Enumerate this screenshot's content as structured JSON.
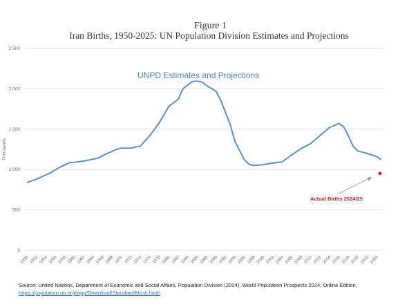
{
  "chart_data": {
    "type": "line",
    "title": "Figure 1",
    "subtitle": "Iran Births, 1950-2025: UN Population Division Estimates and Projections",
    "ylabel": "Thousands",
    "xlabel": "",
    "ylim": [
      0,
      2500
    ],
    "xlim": [
      1950,
      2025
    ],
    "y_ticks": [
      0,
      500,
      1000,
      1500,
      2000,
      2500
    ],
    "y_tick_labels": [
      "0",
      "500",
      "1 000",
      "1 500",
      "2 000",
      "2 500"
    ],
    "x_ticks": [
      1950,
      1952,
      1954,
      1956,
      1958,
      1960,
      1962,
      1964,
      1966,
      1968,
      1970,
      1972,
      1974,
      1976,
      1978,
      1980,
      1982,
      1984,
      1986,
      1988,
      1990,
      1992,
      1994,
      1996,
      1998,
      2000,
      2002,
      2004,
      2006,
      2008,
      2010,
      2012,
      2014,
      2016,
      2018,
      2020,
      2022,
      2024
    ],
    "grid": true,
    "colors": {
      "series": "#5b8fbf",
      "actual": "#d0202a",
      "series_label": "#4a86b8",
      "grid": "#e3e3e3"
    },
    "series": [
      {
        "name": "UNPD Estimates and Projections",
        "x": [
          1950,
          1952,
          1955,
          1957,
          1959,
          1960,
          1962,
          1965,
          1967,
          1969,
          1970,
          1972,
          1974,
          1976,
          1978,
          1980,
          1982,
          1983,
          1985,
          1986,
          1987,
          1988,
          1990,
          1991,
          1993,
          1994,
          1996,
          1997,
          1998,
          2000,
          2002,
          2004,
          2006,
          2008,
          2010,
          2012,
          2014,
          2016,
          2017,
          2018,
          2019,
          2020,
          2022,
          2024,
          2025
        ],
        "values": [
          840,
          880,
          960,
          1030,
          1085,
          1090,
          1105,
          1140,
          1200,
          1250,
          1265,
          1265,
          1290,
          1420,
          1580,
          1780,
          1870,
          2000,
          2090,
          2095,
          2085,
          2040,
          1970,
          1860,
          1560,
          1350,
          1120,
          1065,
          1050,
          1060,
          1080,
          1095,
          1180,
          1260,
          1320,
          1420,
          1520,
          1570,
          1530,
          1420,
          1290,
          1230,
          1200,
          1160,
          1120
        ]
      },
      {
        "name": "Actual Births 2024/25",
        "x": [
          2025
        ],
        "values": [
          950
        ]
      }
    ],
    "annotations": [
      "UNPD Estimates and Projections",
      "Actual Births 2024/25"
    ]
  },
  "source": {
    "text": "Source: United Nations, Department of Economic and Social Affairs, Population Division (2024). World Population Prospects 2024, Online Edition,",
    "link": "https://population.un.org/wpp/Download/Standard/MostUsed/",
    "trail": "."
  }
}
